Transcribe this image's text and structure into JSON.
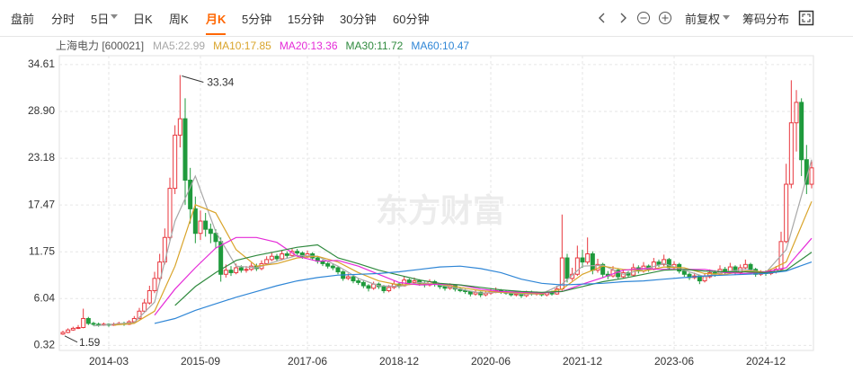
{
  "toolbar": {
    "tabs": [
      "盘前",
      "分时",
      "5日",
      "日K",
      "周K",
      "月K",
      "5分钟",
      "15分钟",
      "30分钟",
      "60分钟"
    ],
    "active": "月K",
    "adjust": "前复权",
    "chips": "筹码分布"
  },
  "chart_data": {
    "type": "candlestick",
    "stock": "上海电力 [600021]",
    "watermark": "东方财富",
    "up_color": "#e8373e",
    "down_color": "#1f9a3c",
    "grid": true,
    "categories": [
      "2013-06",
      "2013-07",
      "2013-08",
      "2013-09",
      "2013-10",
      "2013-11",
      "2013-12",
      "2014-01",
      "2014-02",
      "2014-03",
      "2014-04",
      "2014-05",
      "2014-06",
      "2014-07",
      "2014-08",
      "2014-09",
      "2014-10",
      "2014-11",
      "2014-12",
      "2015-01",
      "2015-02",
      "2015-03",
      "2015-04",
      "2015-05",
      "2015-06",
      "2015-07",
      "2015-08",
      "2015-09",
      "2015-10",
      "2015-11",
      "2015-12",
      "2016-01",
      "2016-02",
      "2016-03",
      "2016-04",
      "2016-05",
      "2016-06",
      "2016-07",
      "2016-08",
      "2016-09",
      "2016-10",
      "2016-11",
      "2016-12",
      "2017-01",
      "2017-02",
      "2017-03",
      "2017-04",
      "2017-05",
      "2017-06",
      "2017-07",
      "2017-08",
      "2017-09",
      "2017-10",
      "2017-11",
      "2017-12",
      "2018-01",
      "2018-02",
      "2018-03",
      "2018-04",
      "2018-05",
      "2018-06",
      "2018-07",
      "2018-08",
      "2018-09",
      "2018-10",
      "2018-11",
      "2018-12",
      "2019-01",
      "2019-02",
      "2019-03",
      "2019-04",
      "2019-05",
      "2019-06",
      "2019-07",
      "2019-08",
      "2019-09",
      "2019-10",
      "2019-11",
      "2019-12",
      "2020-01",
      "2020-02",
      "2020-03",
      "2020-04",
      "2020-05",
      "2020-06",
      "2020-07",
      "2020-08",
      "2020-09",
      "2020-10",
      "2020-11",
      "2020-12",
      "2021-01",
      "2021-02",
      "2021-03",
      "2021-04",
      "2021-05",
      "2021-06",
      "2021-07",
      "2021-08",
      "2021-09",
      "2021-10",
      "2021-11",
      "2021-12",
      "2022-01",
      "2022-02",
      "2022-03",
      "2022-04",
      "2022-05",
      "2022-06",
      "2022-07",
      "2022-08",
      "2022-09",
      "2022-10",
      "2022-11",
      "2022-12",
      "2023-01",
      "2023-02",
      "2023-03",
      "2023-04",
      "2023-05",
      "2023-06",
      "2023-07",
      "2023-08",
      "2023-09",
      "2023-10",
      "2023-11",
      "2023-12",
      "2024-01",
      "2024-02",
      "2024-03",
      "2024-04",
      "2024-05",
      "2024-06",
      "2024-07",
      "2024-08",
      "2024-09",
      "2024-10",
      "2024-11",
      "2024-12",
      "2025-01",
      "2025-02",
      "2025-03",
      "2025-04",
      "2025-05",
      "2025-06",
      "2025-07",
      "2025-08",
      "2025-09"
    ],
    "open": [
      1.7,
      1.9,
      2.2,
      2.4,
      2.5,
      3.6,
      3.0,
      2.9,
      2.8,
      2.9,
      2.8,
      2.9,
      3.0,
      2.9,
      3.2,
      3.6,
      4.5,
      5.5,
      7.0,
      8.5,
      10.5,
      13.5,
      19.5,
      26.0,
      28.0,
      20.5,
      17.0,
      14.0,
      15.5,
      14.5,
      14.0,
      13.0,
      9.0,
      9.5,
      9.2,
      9.8,
      9.5,
      9.6,
      10.0,
      9.7,
      10.3,
      10.8,
      11.2,
      10.9,
      11.5,
      11.3,
      11.8,
      11.6,
      11.2,
      11.5,
      11.0,
      10.6,
      10.3,
      10.0,
      9.8,
      9.3,
      8.5,
      8.7,
      8.2,
      8.0,
      7.6,
      7.3,
      7.8,
      7.5,
      7.0,
      7.4,
      7.8,
      7.6,
      8.3,
      8.0,
      8.2,
      7.9,
      7.7,
      8.1,
      7.8,
      7.5,
      7.3,
      7.6,
      7.2,
      7.0,
      6.9,
      6.6,
      6.8,
      6.5,
      6.7,
      6.9,
      7.0,
      6.8,
      6.7,
      6.5,
      6.6,
      6.4,
      6.8,
      6.6,
      6.7,
      6.5,
      6.8,
      6.6,
      7.2,
      11.0,
      8.5,
      9.0,
      11.0,
      10.5,
      11.5,
      9.5,
      10.2,
      9.0,
      8.8,
      9.5,
      8.7,
      9.2,
      8.9,
      9.8,
      9.4,
      10.0,
      9.6,
      10.5,
      10.2,
      10.8,
      9.8,
      10.2,
      9.4,
      9.0,
      8.6,
      8.8,
      8.2,
      8.7,
      9.2,
      9.0,
      9.6,
      9.3,
      9.9,
      9.2,
      9.8,
      10.2,
      9.6,
      9.0,
      9.2,
      9.1,
      9.3,
      9.6,
      13.0,
      20.0,
      27.5,
      30.0,
      23.0,
      20.0
    ],
    "high": [
      2.1,
      2.4,
      2.6,
      2.8,
      4.8,
      3.8,
      3.2,
      3.1,
      3.1,
      3.0,
      3.1,
      3.2,
      3.2,
      3.4,
      3.9,
      4.9,
      6.0,
      7.6,
      9.3,
      11.5,
      14.6,
      20.8,
      27.2,
      33.34,
      30.5,
      22.0,
      18.5,
      16.8,
      16.5,
      15.2,
      14.5,
      13.5,
      10.2,
      10.0,
      10.3,
      10.1,
      10.0,
      10.4,
      10.3,
      10.7,
      11.2,
      11.7,
      11.5,
      11.9,
      11.8,
      12.2,
      12.1,
      11.8,
      11.9,
      11.7,
      11.2,
      10.8,
      10.5,
      10.3,
      10.0,
      9.5,
      9.1,
      8.9,
      8.5,
      8.2,
      7.8,
      8.1,
      8.0,
      7.7,
      7.7,
      8.2,
      8.0,
      8.8,
      8.5,
      8.6,
      8.4,
      8.1,
      8.4,
      8.3,
      7.9,
      7.7,
      7.9,
      7.7,
      7.4,
      7.2,
      7.0,
      7.1,
      6.9,
      7.0,
      7.2,
      7.4,
      7.2,
      7.0,
      6.9,
      6.8,
      6.7,
      7.0,
      7.0,
      6.9,
      6.8,
      7.0,
      7.0,
      7.6,
      16.3,
      11.5,
      9.8,
      12.5,
      12.0,
      13.5,
      11.8,
      10.9,
      10.4,
      9.4,
      10.0,
      9.7,
      9.6,
      9.4,
      10.3,
      10.1,
      10.5,
      10.2,
      11.0,
      10.8,
      11.4,
      11.0,
      10.6,
      10.4,
      9.6,
      9.2,
      9.2,
      8.9,
      9.1,
      9.6,
      9.5,
      10.1,
      9.9,
      10.4,
      10.1,
      10.2,
      10.8,
      10.4,
      9.8,
      9.5,
      9.5,
      9.6,
      10.0,
      14.2,
      22.5,
      32.7,
      31.5,
      30.5,
      24.8,
      22.8
    ],
    "low": [
      1.59,
      1.8,
      2.1,
      2.3,
      2.4,
      2.8,
      2.7,
      2.6,
      2.7,
      2.6,
      2.7,
      2.8,
      2.7,
      2.8,
      3.1,
      3.5,
      4.3,
      5.3,
      6.7,
      8.2,
      10.2,
      13.0,
      18.8,
      24.5,
      17.5,
      15.2,
      12.8,
      13.2,
      13.6,
      12.8,
      12.2,
      8.1,
      8.6,
      8.8,
      9.0,
      9.2,
      9.2,
      9.4,
      9.4,
      9.5,
      10.1,
      10.6,
      10.6,
      10.7,
      11.0,
      11.1,
      11.3,
      10.9,
      11.0,
      10.7,
      10.3,
      10.0,
      9.7,
      9.5,
      9.0,
      8.2,
      8.3,
      7.9,
      7.7,
      7.3,
      6.9,
      7.1,
      7.2,
      6.7,
      6.8,
      7.2,
      7.3,
      7.5,
      7.7,
      7.8,
      7.6,
      7.4,
      7.5,
      7.5,
      7.2,
      7.0,
      7.1,
      6.9,
      6.8,
      6.6,
      6.3,
      6.4,
      6.2,
      6.3,
      6.5,
      6.7,
      6.6,
      6.5,
      6.3,
      6.3,
      6.1,
      6.2,
      6.4,
      6.4,
      6.3,
      6.3,
      6.4,
      6.5,
      7.0,
      8.0,
      8.2,
      8.8,
      9.8,
      10.2,
      9.0,
      9.2,
      8.6,
      8.4,
      8.6,
      8.4,
      8.5,
      8.6,
      8.8,
      9.1,
      9.2,
      9.3,
      9.5,
      9.9,
      10.0,
      9.5,
      9.6,
      9.1,
      8.7,
      8.3,
      8.4,
      7.8,
      8.0,
      8.5,
      8.7,
      8.9,
      9.0,
      9.2,
      8.9,
      9.0,
      9.6,
      9.3,
      8.7,
      8.8,
      8.8,
      8.9,
      9.1,
      9.4,
      12.8,
      19.5,
      24.0,
      21.0,
      18.8,
      19.5
    ],
    "close": [
      1.9,
      2.2,
      2.4,
      2.5,
      3.6,
      3.0,
      2.9,
      2.8,
      2.9,
      2.8,
      2.9,
      3.0,
      2.9,
      3.2,
      3.6,
      4.5,
      5.5,
      7.0,
      8.5,
      10.5,
      13.5,
      19.5,
      26.0,
      28.0,
      20.5,
      17.0,
      14.0,
      15.5,
      14.5,
      14.0,
      13.0,
      9.0,
      9.5,
      9.2,
      9.8,
      9.5,
      9.6,
      10.0,
      9.7,
      10.3,
      10.8,
      11.2,
      10.9,
      11.5,
      11.3,
      11.8,
      11.6,
      11.2,
      11.5,
      11.0,
      10.6,
      10.3,
      10.0,
      9.8,
      9.3,
      8.5,
      8.7,
      8.2,
      8.0,
      7.6,
      7.3,
      7.8,
      7.5,
      7.0,
      7.4,
      7.8,
      7.6,
      8.3,
      8.0,
      8.2,
      7.9,
      7.7,
      8.1,
      7.8,
      7.5,
      7.3,
      7.6,
      7.2,
      7.0,
      6.9,
      6.6,
      6.8,
      6.5,
      6.7,
      6.9,
      7.0,
      6.8,
      6.7,
      6.5,
      6.6,
      6.4,
      6.8,
      6.6,
      6.7,
      6.5,
      6.8,
      6.6,
      7.2,
      11.0,
      8.5,
      9.0,
      11.0,
      10.5,
      11.5,
      9.5,
      10.2,
      9.0,
      8.8,
      9.5,
      8.7,
      9.2,
      8.9,
      9.8,
      9.4,
      10.0,
      9.6,
      10.5,
      10.2,
      10.8,
      9.8,
      10.2,
      9.4,
      9.0,
      8.6,
      8.8,
      8.2,
      8.7,
      9.2,
      9.0,
      9.6,
      9.3,
      9.9,
      9.2,
      9.8,
      10.2,
      9.6,
      9.0,
      9.2,
      9.1,
      9.3,
      9.6,
      13.0,
      20.0,
      27.5,
      30.0,
      23.0,
      20.0,
      22.0
    ],
    "series": [
      {
        "name": "MA5:22.99",
        "color": "#a8a8a8",
        "x": [
          "2013-12",
          "2014-04",
          "2014-08",
          "2014-12",
          "2015-04",
          "2015-08",
          "2015-12",
          "2016-04",
          "2016-08",
          "2016-12",
          "2017-04",
          "2017-08",
          "2017-12",
          "2018-04",
          "2018-08",
          "2018-12",
          "2019-04",
          "2019-08",
          "2019-12",
          "2020-04",
          "2020-08",
          "2020-12",
          "2021-04",
          "2021-08",
          "2021-12",
          "2022-04",
          "2022-08",
          "2022-12",
          "2023-04",
          "2023-08",
          "2023-12",
          "2024-04",
          "2024-08",
          "2024-12",
          "2025-04",
          "2025-09"
        ],
        "values": [
          2.7,
          2.9,
          3.1,
          5.6,
          15.5,
          21,
          14.2,
          10,
          9.8,
          10.6,
          11.3,
          11.2,
          10.0,
          8.5,
          7.6,
          7.5,
          8.0,
          7.7,
          7.2,
          6.7,
          6.8,
          6.6,
          6.6,
          7.8,
          10.0,
          10.1,
          9.0,
          9.6,
          10.3,
          9.5,
          8.7,
          9.3,
          9.6,
          9.2,
          12.0,
          23.0
        ]
      },
      {
        "name": "MA10:17.85",
        "color": "#d9a42a",
        "x": [
          "2014-04",
          "2014-08",
          "2014-12",
          "2015-04",
          "2015-08",
          "2015-12",
          "2016-04",
          "2016-08",
          "2016-12",
          "2017-04",
          "2017-08",
          "2017-12",
          "2018-04",
          "2018-08",
          "2018-12",
          "2019-04",
          "2019-08",
          "2019-12",
          "2020-04",
          "2020-08",
          "2020-12",
          "2021-04",
          "2021-08",
          "2021-12",
          "2022-04",
          "2022-08",
          "2022-12",
          "2023-04",
          "2023-08",
          "2023-12",
          "2024-04",
          "2024-08",
          "2024-12",
          "2025-04",
          "2025-09"
        ],
        "values": [
          2.8,
          3.0,
          4.5,
          10,
          17.5,
          16.5,
          12,
          10,
          10.3,
          11.0,
          11.2,
          10.5,
          9.2,
          8.2,
          7.7,
          7.8,
          7.8,
          7.4,
          7.0,
          6.8,
          6.7,
          6.6,
          7.2,
          9.0,
          10.0,
          9.6,
          9.4,
          9.9,
          9.8,
          9.1,
          9.0,
          9.4,
          9.3,
          10.5,
          17.9
        ]
      },
      {
        "name": "MA20:13.36",
        "color": "#e52bd8",
        "x": [
          "2014-12",
          "2015-04",
          "2015-08",
          "2015-12",
          "2016-04",
          "2016-08",
          "2016-12",
          "2017-04",
          "2017-08",
          "2017-12",
          "2018-04",
          "2018-08",
          "2018-12",
          "2019-04",
          "2019-08",
          "2019-12",
          "2020-04",
          "2020-08",
          "2020-12",
          "2021-04",
          "2021-08",
          "2021-12",
          "2022-04",
          "2022-08",
          "2022-12",
          "2023-04",
          "2023-08",
          "2023-12",
          "2024-04",
          "2024-08",
          "2024-12",
          "2025-04",
          "2025-09"
        ],
        "values": [
          4.0,
          7.2,
          9.8,
          12.2,
          13.5,
          13.5,
          12.9,
          11.2,
          10.6,
          10.7,
          10.0,
          9.0,
          8.0,
          7.7,
          7.8,
          7.7,
          7.2,
          6.9,
          6.8,
          6.7,
          6.9,
          7.8,
          8.6,
          9.5,
          9.7,
          9.6,
          9.6,
          9.6,
          9.2,
          9.1,
          9.3,
          9.8,
          13.4
        ]
      },
      {
        "name": "MA30:11.72",
        "color": "#2f8a3e",
        "x": [
          "2015-04",
          "2015-08",
          "2015-12",
          "2016-04",
          "2016-08",
          "2016-12",
          "2017-04",
          "2017-08",
          "2017-12",
          "2018-04",
          "2018-08",
          "2018-12",
          "2019-04",
          "2019-08",
          "2019-12",
          "2020-04",
          "2020-08",
          "2020-12",
          "2021-04",
          "2021-08",
          "2021-12",
          "2022-04",
          "2022-08",
          "2022-12",
          "2023-04",
          "2023-08",
          "2023-12",
          "2024-04",
          "2024-08",
          "2024-12",
          "2025-04",
          "2025-09"
        ],
        "values": [
          5.2,
          7.5,
          9.2,
          10.7,
          11.3,
          11.8,
          12.3,
          12.6,
          11.0,
          10.3,
          9.5,
          8.9,
          8.3,
          7.9,
          7.7,
          7.4,
          7.1,
          6.9,
          6.8,
          6.9,
          7.5,
          8.1,
          8.5,
          9.0,
          9.5,
          9.6,
          9.4,
          9.3,
          9.3,
          9.2,
          9.5,
          11.7
        ]
      },
      {
        "name": "MA60:10.47",
        "color": "#2f86d6",
        "x": [
          "2014-12",
          "2015-04",
          "2015-08",
          "2015-12",
          "2016-04",
          "2016-08",
          "2016-12",
          "2017-04",
          "2017-08",
          "2017-12",
          "2018-04",
          "2018-08",
          "2018-12",
          "2019-04",
          "2019-08",
          "2019-12",
          "2020-04",
          "2020-08",
          "2020-12",
          "2021-04",
          "2021-08",
          "2021-12",
          "2022-04",
          "2022-08",
          "2022-12",
          "2023-04",
          "2023-08",
          "2023-12",
          "2024-04",
          "2024-08",
          "2024-12",
          "2025-04",
          "2025-09"
        ],
        "values": [
          3.0,
          3.6,
          4.6,
          5.4,
          6.2,
          6.9,
          7.6,
          8.2,
          8.6,
          8.9,
          9.0,
          9.1,
          9.3,
          9.6,
          9.9,
          10.0,
          9.7,
          9.2,
          8.4,
          7.9,
          7.7,
          7.8,
          7.9,
          8.1,
          8.2,
          8.4,
          8.6,
          8.8,
          8.9,
          9.0,
          9.1,
          9.4,
          10.5
        ]
      }
    ],
    "ylim": [
      -0.3,
      35.7
    ],
    "yticks": [
      0.32,
      6.04,
      11.75,
      17.47,
      23.18,
      {
        "value": 28.9,
        "label": "28.90"
      },
      34.61
    ],
    "xticks": [
      "2014-03",
      "2015-09",
      "2017-06",
      "2018-12",
      "2020-06",
      "2021-12",
      "2023-06",
      "2024-12"
    ]
  }
}
